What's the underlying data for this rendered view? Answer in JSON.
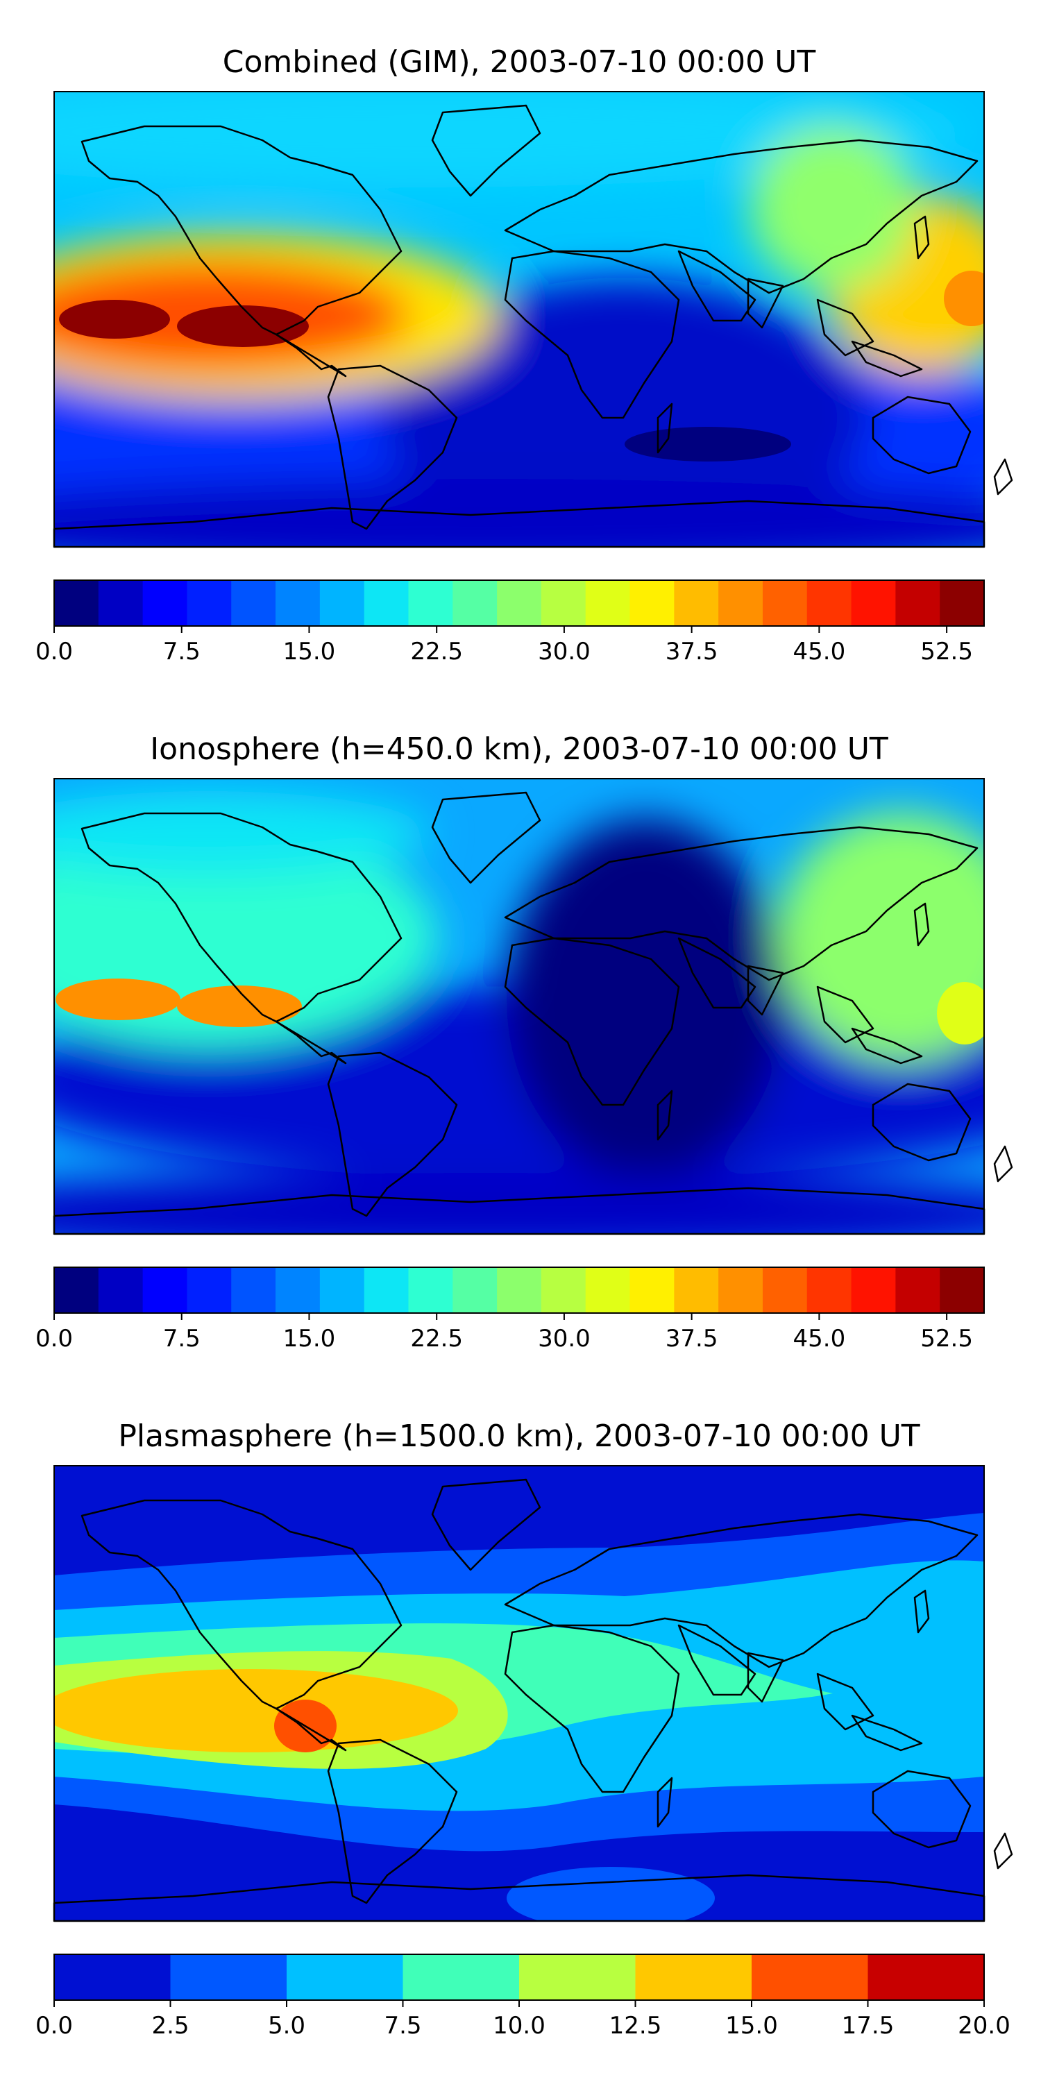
{
  "colors": {
    "jet22": [
      "#00007f",
      "#0000c4",
      "#0000ff",
      "#0020ff",
      "#0054ff",
      "#0084ff",
      "#00b4ff",
      "#0de6f5",
      "#2effd2",
      "#55ffa4",
      "#8cff6c",
      "#b7ff41",
      "#e0ff17",
      "#fff000",
      "#ffbc00",
      "#ff9000",
      "#ff6100",
      "#ff3500",
      "#ff1300",
      "#c40000",
      "#8c0000"
    ],
    "jet8": [
      "#0010d2",
      "#0058ff",
      "#00c0ff",
      "#40ffb8",
      "#b8ff40",
      "#ffc800",
      "#ff5000",
      "#c80000"
    ],
    "land": "#000000"
  },
  "chart_data": [
    {
      "type": "heatmap",
      "title": "Combined (GIM), 2003-07-10 00:00 UT",
      "colorbar": {
        "min": 0,
        "max": 54.7,
        "levels": 21,
        "tick_values": [
          0,
          7.5,
          15,
          22.5,
          30,
          37.5,
          45,
          52.5
        ],
        "tick_labels": [
          "0.0",
          "7.5",
          "15.0",
          "22.5",
          "30.0",
          "37.5",
          "45.0",
          "52.5"
        ]
      },
      "features": [
        {
          "lon": -155,
          "lat": 0,
          "value": 54
        },
        {
          "lon": -120,
          "lat": 0,
          "value": 53
        },
        {
          "lon": 175,
          "lat": 8,
          "value": 40
        },
        {
          "lon": 155,
          "lat": 30,
          "value": 32
        },
        {
          "lon": 60,
          "lat": -40,
          "value": 3
        }
      ],
      "background": 12
    },
    {
      "type": "heatmap",
      "title": "Ionosphere  (h=450.0 km), 2003-07-10 00:00 UT",
      "colorbar": {
        "min": 0,
        "max": 54.7,
        "levels": 21,
        "tick_values": [
          0,
          7.5,
          15,
          22.5,
          30,
          37.5,
          45,
          52.5
        ],
        "tick_labels": [
          "0.0",
          "7.5",
          "15.0",
          "22.5",
          "30.0",
          "37.5",
          "45.0",
          "52.5"
        ]
      },
      "features": [
        {
          "lon": -155,
          "lat": 0,
          "value": 38
        },
        {
          "lon": -120,
          "lat": 0,
          "value": 38
        },
        {
          "lon": 175,
          "lat": 5,
          "value": 33
        },
        {
          "lon": 70,
          "lat": -10,
          "value": 2
        }
      ],
      "background": 11
    },
    {
      "type": "heatmap",
      "title": "Plasmasphere (h=1500.0 km), 2003-07-10 00:00 UT",
      "colorbar": {
        "min": 0,
        "max": 20,
        "levels": 8,
        "tick_values": [
          0,
          2.5,
          5,
          7.5,
          10,
          12.5,
          15,
          17.5,
          20
        ],
        "tick_labels": [
          "0.0",
          "2.5",
          "5.0",
          "7.5",
          "10.0",
          "12.5",
          "15.0",
          "17.5",
          "20.0"
        ]
      },
      "features": [
        {
          "lon": -75,
          "lat": -10,
          "value": 17
        },
        {
          "lon": -165,
          "lat": -5,
          "value": 13
        },
        {
          "lon": 60,
          "lat": -15,
          "value": 6
        }
      ],
      "background": 2
    }
  ]
}
